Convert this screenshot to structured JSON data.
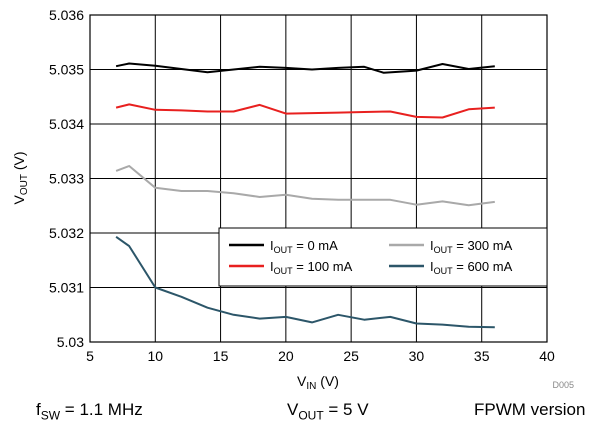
{
  "chart_data": {
    "type": "line",
    "xlabel": "V_IN (V)",
    "xlabel_main": "V",
    "xlabel_sub": "IN",
    "xlabel_unit": " (V)",
    "ylabel": "V_OUT (V)",
    "ylabel_main": "V",
    "ylabel_sub": "OUT",
    "ylabel_unit": " (V)",
    "xlim": [
      5,
      40
    ],
    "ylim": [
      5.03,
      5.036
    ],
    "x_ticks": [
      5,
      10,
      15,
      20,
      25,
      30,
      35,
      40
    ],
    "x_tick_labels": [
      "5",
      "10",
      "15",
      "20",
      "25",
      "30",
      "35",
      "40"
    ],
    "y_ticks": [
      5.03,
      5.031,
      5.032,
      5.033,
      5.034,
      5.035,
      5.036
    ],
    "y_tick_labels": [
      "5.03",
      "5.031",
      "5.032",
      "5.033",
      "5.034",
      "5.035",
      "5.036"
    ],
    "grid": true,
    "legend_position": "bottom-right",
    "legend_columns": 2,
    "series": [
      {
        "name": "I_OUT = 0 mA",
        "name_main": "I",
        "name_sub": "OUT",
        "name_rest": " = 0 mA",
        "color": "#000000",
        "x": [
          7,
          8,
          10,
          12,
          14,
          16,
          18,
          20,
          22,
          24,
          26,
          27.5,
          30,
          32,
          34,
          36
        ],
        "y": [
          5.03506,
          5.03511,
          5.03507,
          5.03501,
          5.03495,
          5.035,
          5.03505,
          5.03503,
          5.035,
          5.03503,
          5.03505,
          5.03494,
          5.03498,
          5.0351,
          5.03501,
          5.03506
        ]
      },
      {
        "name": "I_OUT = 100 mA",
        "name_main": "I",
        "name_sub": "OUT",
        "name_rest": " = 100 mA",
        "color": "#e8201f",
        "x": [
          7,
          8,
          10,
          12,
          14,
          16,
          18,
          20,
          22,
          24,
          26,
          28,
          30,
          32,
          34,
          36
        ],
        "y": [
          5.0343,
          5.03436,
          5.03426,
          5.03425,
          5.03423,
          5.03423,
          5.03435,
          5.03419,
          5.0342,
          5.03421,
          5.03422,
          5.03423,
          5.03413,
          5.03412,
          5.03427,
          5.0343
        ]
      },
      {
        "name": "I_OUT = 300 mA",
        "name_main": "I",
        "name_sub": "OUT",
        "name_rest": " = 300 mA",
        "color": "#a9a9a9",
        "x": [
          7,
          8,
          10,
          12,
          14,
          16,
          18,
          20,
          22,
          24,
          26,
          28,
          30,
          32,
          34,
          36
        ],
        "y": [
          5.03314,
          5.03323,
          5.03283,
          5.03277,
          5.03277,
          5.03273,
          5.03266,
          5.0327,
          5.03263,
          5.03261,
          5.03261,
          5.03261,
          5.03252,
          5.03258,
          5.03251,
          5.03257
        ]
      },
      {
        "name": "I_OUT = 600 mA",
        "name_main": "I",
        "name_sub": "OUT",
        "name_rest": " = 600 mA",
        "color": "#2c5669",
        "x": [
          7,
          8,
          10,
          12,
          14,
          16,
          18,
          20,
          22,
          24,
          26,
          28,
          30,
          32,
          34,
          36
        ],
        "y": [
          5.03193,
          5.03176,
          5.031,
          5.03083,
          5.03063,
          5.0305,
          5.03043,
          5.03046,
          5.03036,
          5.0305,
          5.03041,
          5.03046,
          5.03034,
          5.03032,
          5.03028,
          5.03027
        ]
      }
    ]
  },
  "figure_code": "D005",
  "captions": {
    "fsw": {
      "main": "f",
      "sub": "SW",
      "rest": " = 1.1 MHz"
    },
    "vout": {
      "main": "V",
      "sub": "OUT",
      "rest": " = 5 V"
    },
    "mode": "FPWM version"
  }
}
